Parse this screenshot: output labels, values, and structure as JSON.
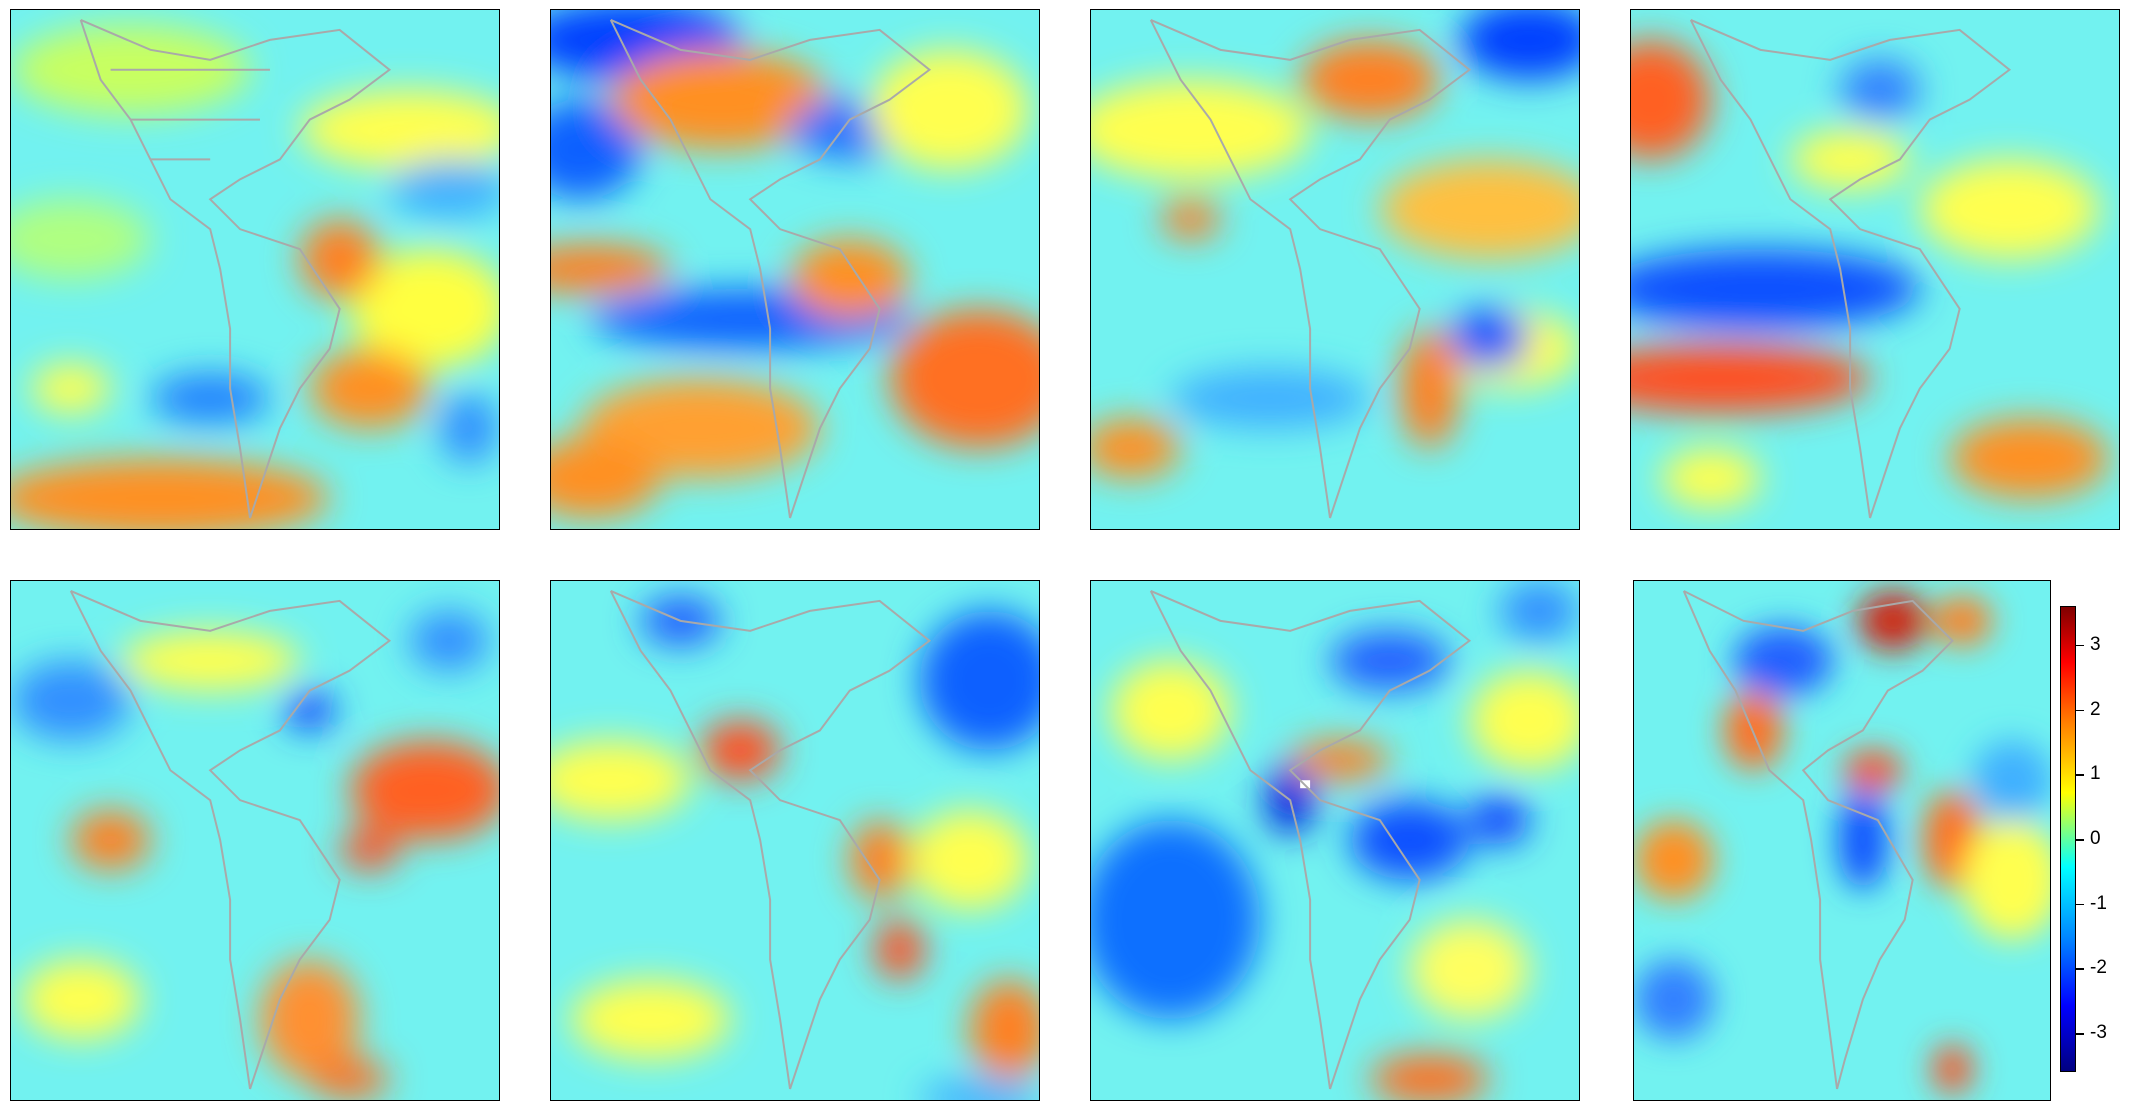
{
  "colorbar": {
    "ticks": [
      {
        "value": 3,
        "label": "3"
      },
      {
        "value": 2,
        "label": "2"
      },
      {
        "value": 1,
        "label": "1"
      },
      {
        "value": 0,
        "label": "0"
      },
      {
        "value": -1,
        "label": "-1"
      },
      {
        "value": -2,
        "label": "-2"
      },
      {
        "value": -3,
        "label": "-3"
      }
    ],
    "range": [
      -3.6,
      3.6
    ],
    "colormap": "jet"
  },
  "map": {
    "region": "Americas",
    "panel_count": 8,
    "coastline_color": "#a9a9a9"
  },
  "colors": {
    "low": "#000080",
    "mid": "#80ff80",
    "high": "#800000"
  }
}
